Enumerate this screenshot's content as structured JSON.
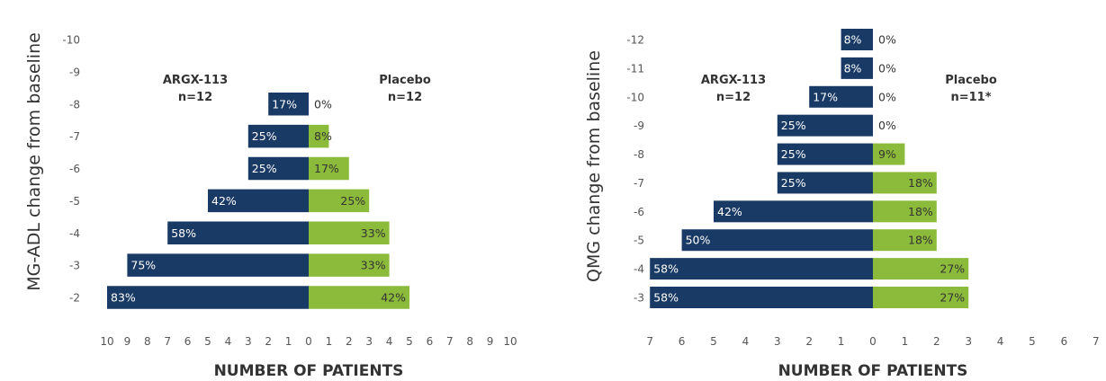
{
  "colors": {
    "argx": "#1a3a66",
    "placebo": "#8cba3a",
    "text": "#333333",
    "tick": "#555555"
  },
  "chart_data": [
    {
      "type": "bar",
      "orientation": "diverging-horizontal",
      "ylabel": "MG-ADL change from baseline",
      "xlabel": "NUMBER OF PATIENTS",
      "y_ticks": [
        "-10",
        "-9",
        "-8",
        "-7",
        "-6",
        "-5",
        "-4",
        "-3",
        "-2"
      ],
      "x_ticks": [
        "10",
        "9",
        "8",
        "7",
        "6",
        "5",
        "4",
        "3",
        "2",
        "1",
        "0",
        "1",
        "2",
        "3",
        "4",
        "5",
        "6",
        "7",
        "8",
        "9",
        "10"
      ],
      "xlim": [
        -10,
        10
      ],
      "groups": {
        "left": {
          "name": "ARGX-113",
          "n": "n=12"
        },
        "right": {
          "name": "Placebo",
          "n": "n=12"
        }
      },
      "categories": [
        "-8",
        "-7",
        "-6",
        "-5",
        "-4",
        "-3",
        "-2"
      ],
      "series": [
        {
          "name": "ARGX-113",
          "values": [
            2,
            3,
            3,
            5,
            7,
            9,
            10
          ],
          "labels": [
            "17%",
            "25%",
            "25%",
            "42%",
            "58%",
            "75%",
            "83%"
          ]
        },
        {
          "name": "Placebo",
          "values": [
            0,
            1,
            2,
            3,
            4,
            4,
            5
          ],
          "labels": [
            "0%",
            "8%",
            "17%",
            "25%",
            "33%",
            "33%",
            "42%"
          ]
        }
      ]
    },
    {
      "type": "bar",
      "orientation": "diverging-horizontal",
      "ylabel": "QMG change from baseline",
      "xlabel": "NUMBER OF PATIENTS",
      "y_ticks": [
        "-12",
        "-11",
        "-10",
        "-9",
        "-8",
        "-7",
        "-6",
        "-5",
        "-4",
        "-3"
      ],
      "x_ticks": [
        "7",
        "6",
        "5",
        "4",
        "3",
        "2",
        "1",
        "0",
        "1",
        "2",
        "3",
        "4",
        "5",
        "6",
        "7"
      ],
      "xlim": [
        -7,
        7
      ],
      "groups": {
        "left": {
          "name": "ARGX-113",
          "n": "n=12"
        },
        "right": {
          "name": "Placebo",
          "n": "n=11*"
        }
      },
      "categories": [
        "-12",
        "-11",
        "-10",
        "-9",
        "-8",
        "-7",
        "-6",
        "-5",
        "-4",
        "-3"
      ],
      "series": [
        {
          "name": "ARGX-113",
          "values": [
            1,
            1,
            2,
            3,
            3,
            3,
            5,
            6,
            7,
            7
          ],
          "labels": [
            "8%",
            "8%",
            "17%",
            "25%",
            "25%",
            "25%",
            "42%",
            "50%",
            "58%",
            "58%"
          ]
        },
        {
          "name": "Placebo",
          "values": [
            0,
            0,
            0,
            0,
            1,
            2,
            2,
            2,
            3,
            3
          ],
          "labels": [
            "0%",
            "0%",
            "0%",
            "0%",
            "9%",
            "18%",
            "18%",
            "18%",
            "27%",
            "27%"
          ]
        }
      ]
    }
  ]
}
